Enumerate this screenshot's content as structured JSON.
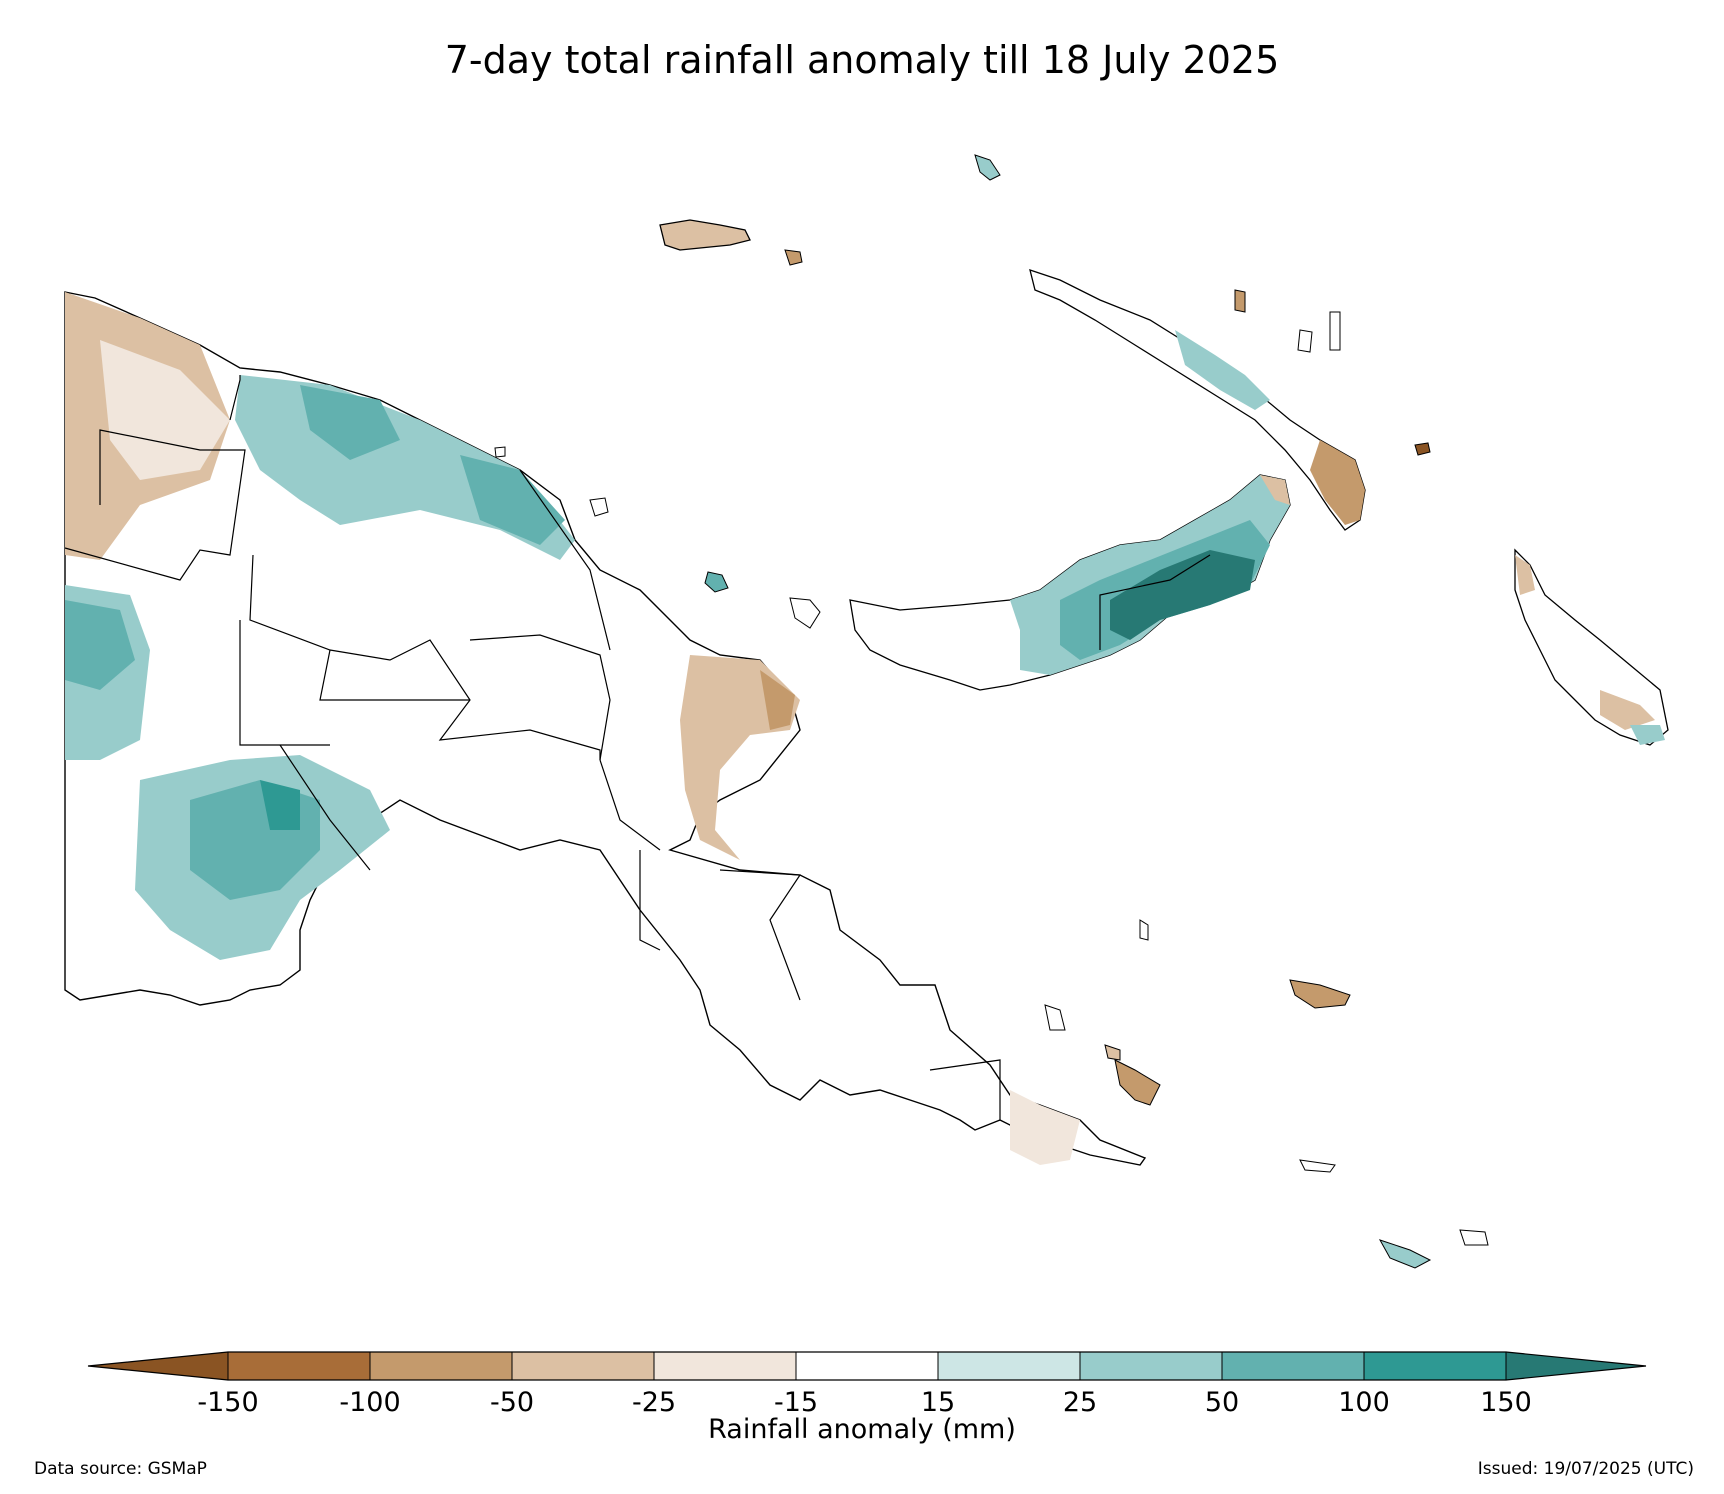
{
  "title": "7-day total rainfall anomaly till 18 July 2025",
  "colorbar": {
    "label": "Rainfall anomaly (mm)",
    "ticks": [
      "-150",
      "-100",
      "-50",
      "-25",
      "-15",
      "15",
      "25",
      "50",
      "100",
      "150"
    ],
    "colors": {
      "under": "#8a5423",
      "bins": [
        "#a86d38",
        "#c49a6c",
        "#dcc0a3",
        "#f1e6dc",
        "#ffffff",
        "#cde6e5",
        "#98cccb",
        "#62b1af",
        "#2e9993"
      ],
      "over": "#277974"
    }
  },
  "footer": {
    "source": "Data source: GSMaP",
    "issued": "Issued: 19/07/2025 (UTC)"
  },
  "map_colors": {
    "land": "#ffffff",
    "border": "#000000"
  }
}
